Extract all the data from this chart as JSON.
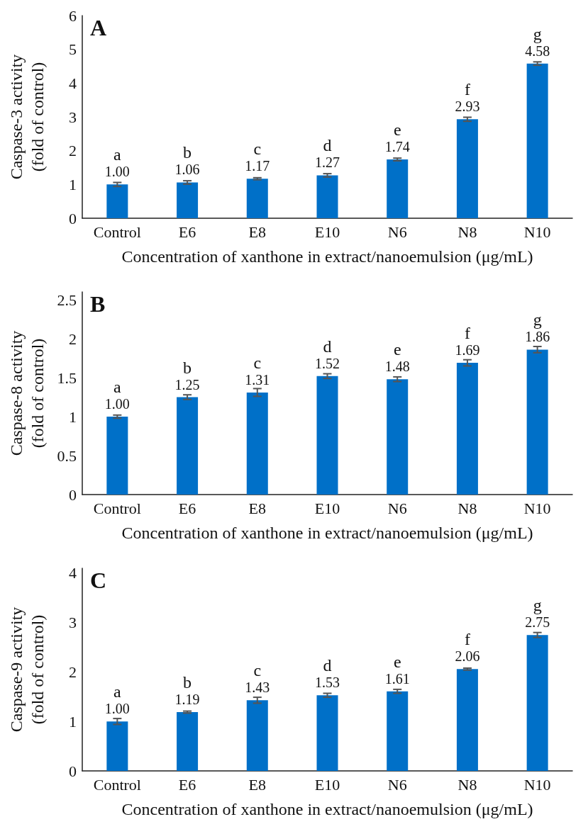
{
  "chart_data": [
    {
      "type": "bar",
      "title": "A",
      "xlabel": "Concentration of xanthone in extract/nanoemulsion (μg/mL)",
      "ylabel": "Caspase-3 activity\n(fold of control)",
      "categories": [
        "Control",
        "E6",
        "E8",
        "E10",
        "N6",
        "N8",
        "N10"
      ],
      "values": [
        1.0,
        1.06,
        1.17,
        1.27,
        1.74,
        2.93,
        4.58
      ],
      "color": "#0070c8",
      "errors": [
        0.06,
        0.05,
        0.03,
        0.05,
        0.04,
        0.06,
        0.05
      ],
      "ylim": [
        0,
        6
      ],
      "yticks": [
        0,
        1,
        2,
        3,
        4,
        5,
        6
      ],
      "grid": false,
      "value_labels": [
        "1.00",
        "1.06",
        "1.17",
        "1.27",
        "1.74",
        "2.93",
        "4.58"
      ],
      "annotations": [
        {
          "text": "a",
          "x": "Control",
          "y": 1.0
        },
        {
          "text": "b",
          "x": "E6",
          "y": 1.06
        },
        {
          "text": "c",
          "x": "E8",
          "y": 1.17
        },
        {
          "text": "d",
          "x": "E10",
          "y": 1.27
        },
        {
          "text": "e",
          "x": "N6",
          "y": 1.74
        },
        {
          "text": "f",
          "x": "N8",
          "y": 2.93
        },
        {
          "text": "g",
          "x": "N10",
          "y": 4.58
        }
      ]
    },
    {
      "type": "bar",
      "title": "B",
      "xlabel": "Concentration of xanthone in extract/nanoemulsion (μg/mL)",
      "ylabel": "Caspase-8 activity\n(fold of control)",
      "categories": [
        "Control",
        "E6",
        "E8",
        "E10",
        "N6",
        "N8",
        "N10"
      ],
      "values": [
        1.0,
        1.25,
        1.31,
        1.52,
        1.48,
        1.69,
        1.86
      ],
      "color": "#0070c8",
      "errors": [
        0.02,
        0.03,
        0.05,
        0.03,
        0.03,
        0.04,
        0.04
      ],
      "ylim": [
        0,
        2.6
      ],
      "yticks": [
        0,
        0.5,
        1,
        1.5,
        2,
        2.5
      ],
      "grid": false,
      "value_labels": [
        "1.00",
        "1.25",
        "1.31",
        "1.52",
        "1.48",
        "1.69",
        "1.86"
      ],
      "annotations": [
        {
          "text": "a",
          "x": "Control",
          "y": 1.0
        },
        {
          "text": "b",
          "x": "E6",
          "y": 1.25
        },
        {
          "text": "c",
          "x": "E8",
          "y": 1.31
        },
        {
          "text": "d",
          "x": "E10",
          "y": 1.52
        },
        {
          "text": "e",
          "x": "N6",
          "y": 1.48
        },
        {
          "text": "f",
          "x": "N8",
          "y": 1.69
        },
        {
          "text": "g",
          "x": "N10",
          "y": 1.86
        }
      ]
    },
    {
      "type": "bar",
      "title": "C",
      "xlabel": "Concentration of xanthone in extract/nanoemulsion (μg/mL)",
      "ylabel": "Caspase-9 activity\n(fold of control)",
      "categories": [
        "Control",
        "E6",
        "E8",
        "E10",
        "N6",
        "N8",
        "N10"
      ],
      "values": [
        1.0,
        1.19,
        1.43,
        1.53,
        1.61,
        2.06,
        2.75
      ],
      "color": "#0070c8",
      "errors": [
        0.06,
        0.02,
        0.06,
        0.04,
        0.04,
        0.02,
        0.05
      ],
      "ylim": [
        0,
        4.1
      ],
      "yticks": [
        0,
        1,
        2,
        3,
        4
      ],
      "grid": false,
      "value_labels": [
        "1.00",
        "1.19",
        "1.43",
        "1.53",
        "1.61",
        "2.06",
        "2.75"
      ],
      "annotations": [
        {
          "text": "a",
          "x": "Control",
          "y": 1.0
        },
        {
          "text": "b",
          "x": "E6",
          "y": 1.19
        },
        {
          "text": "c",
          "x": "E8",
          "y": 1.43
        },
        {
          "text": "d",
          "x": "E10",
          "y": 1.53
        },
        {
          "text": "e",
          "x": "N6",
          "y": 1.61
        },
        {
          "text": "f",
          "x": "N8",
          "y": 2.06
        },
        {
          "text": "g",
          "x": "N10",
          "y": 2.75
        }
      ]
    }
  ]
}
